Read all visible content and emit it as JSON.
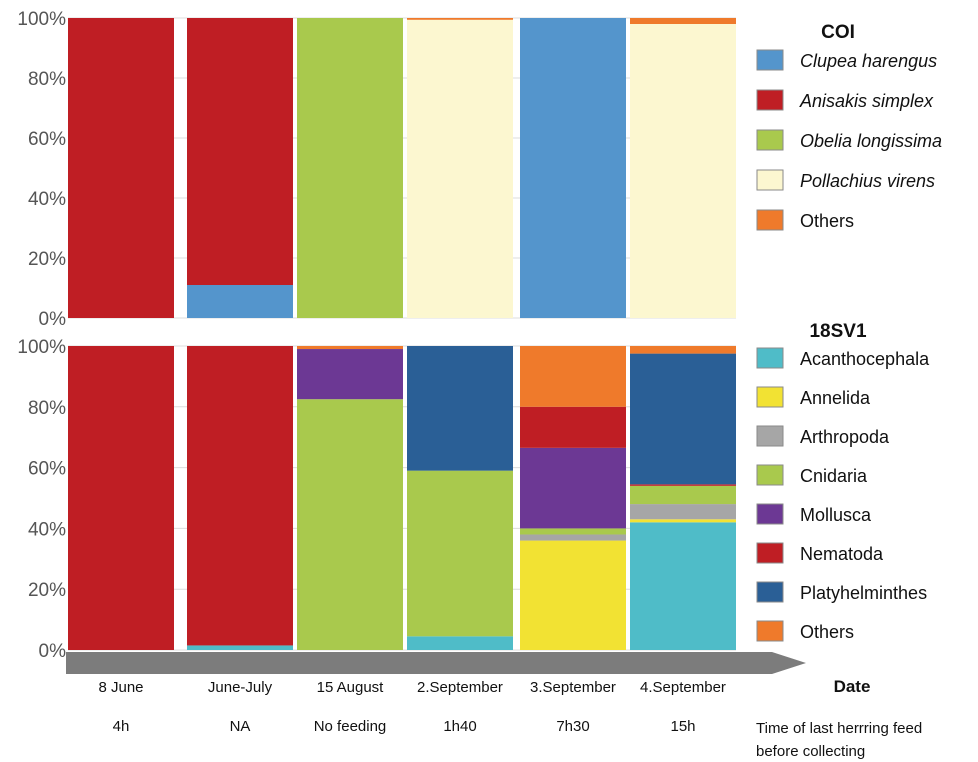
{
  "chart_data": [
    {
      "type": "bar",
      "stacked": true,
      "normalized": true,
      "title": "COI",
      "categories": [
        "8 June",
        "June-July",
        "15 August",
        "2.September",
        "3.September",
        "4.September"
      ],
      "ylim": [
        0,
        100
      ],
      "y_ticks": [
        "0%",
        "20%",
        "40%",
        "60%",
        "80%",
        "100%"
      ],
      "legend_position": "right",
      "series": [
        {
          "name": "Clupea harengus",
          "color": "#5495cc",
          "values": [
            0,
            11,
            0,
            0,
            100,
            0
          ]
        },
        {
          "name": "Anisakis simplex",
          "color": "#bf1e24",
          "values": [
            100,
            89,
            0,
            0,
            0,
            0
          ]
        },
        {
          "name": "Obelia longissima",
          "color": "#a9c94d",
          "values": [
            0,
            0,
            100,
            0,
            0,
            0
          ]
        },
        {
          "name": "Pollachius virens",
          "color": "#fcf7d0",
          "values": [
            0,
            0,
            0,
            99.4,
            0,
            98
          ]
        },
        {
          "name": "Others",
          "color": "#ef7a2b",
          "values": [
            0,
            0,
            0,
            0.6,
            0,
            2
          ]
        }
      ]
    },
    {
      "type": "bar",
      "stacked": true,
      "normalized": true,
      "title": "18SV1",
      "categories": [
        "8 June",
        "June-July",
        "15 August",
        "2.September",
        "3.September",
        "4.September"
      ],
      "ylim": [
        0,
        100
      ],
      "y_ticks": [
        "0%",
        "20%",
        "40%",
        "60%",
        "80%",
        "100%"
      ],
      "legend_position": "right",
      "series": [
        {
          "name": "Acanthocephala",
          "color": "#4fbcc8",
          "values": [
            0,
            1.5,
            0,
            4.5,
            0,
            42
          ]
        },
        {
          "name": "Annelida",
          "color": "#f2e233",
          "values": [
            0,
            0,
            0,
            0,
            36,
            1
          ]
        },
        {
          "name": "Arthropoda",
          "color": "#a6a6a6",
          "values": [
            0,
            0,
            0,
            0,
            2,
            5
          ]
        },
        {
          "name": "Cnidaria",
          "color": "#a9c94d",
          "values": [
            0,
            0,
            82.5,
            54.5,
            2,
            6
          ]
        },
        {
          "name": "Mollusca",
          "color": "#6c3894",
          "values": [
            0,
            0,
            16.5,
            0,
            26.5,
            0
          ]
        },
        {
          "name": "Nematoda",
          "color": "#bf1e24",
          "values": [
            100,
            98.5,
            0,
            0,
            13.5,
            0.5
          ]
        },
        {
          "name": "Platyhelminthes",
          "color": "#2a5f96",
          "values": [
            0,
            0,
            0,
            41,
            0,
            43
          ]
        },
        {
          "name": "Others",
          "color": "#ef7a2b",
          "values": [
            0,
            0,
            1,
            0,
            20,
            2.5
          ]
        }
      ]
    }
  ],
  "x_axis": {
    "title": "Date",
    "subtitle_lines": [
      "Time of last herrring feed",
      "before collecting"
    ],
    "secondary_labels": [
      "4h",
      "NA",
      "No feeding",
      "1h40",
      "7h30",
      "15h"
    ]
  }
}
